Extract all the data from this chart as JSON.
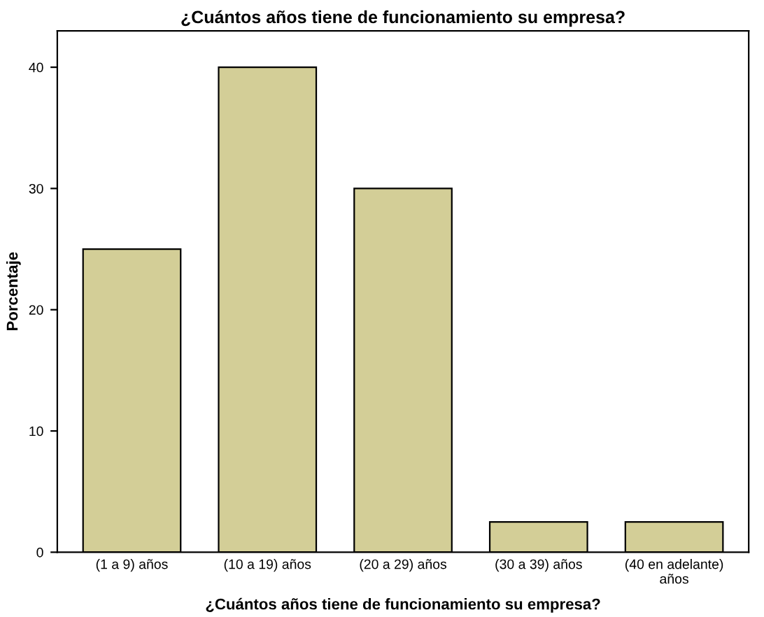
{
  "chart_data": {
    "type": "bar",
    "title": "¿Cuántos años tiene de funcionamiento su empresa?",
    "xlabel": "¿Cuántos años tiene de funcionamiento su empresa?",
    "ylabel": "Porcentaje",
    "categories": [
      "(1 a 9) años",
      "(10 a 19) años",
      "(20 a 29) años",
      "(30 a 39) años",
      "(40 en adelante)\naños"
    ],
    "values": [
      25,
      40,
      30,
      2.5,
      2.5
    ],
    "color": "#d3ce97",
    "ylim": [
      0,
      43
    ],
    "yticks": [
      0,
      10,
      20,
      30,
      40
    ],
    "grid": false
  }
}
